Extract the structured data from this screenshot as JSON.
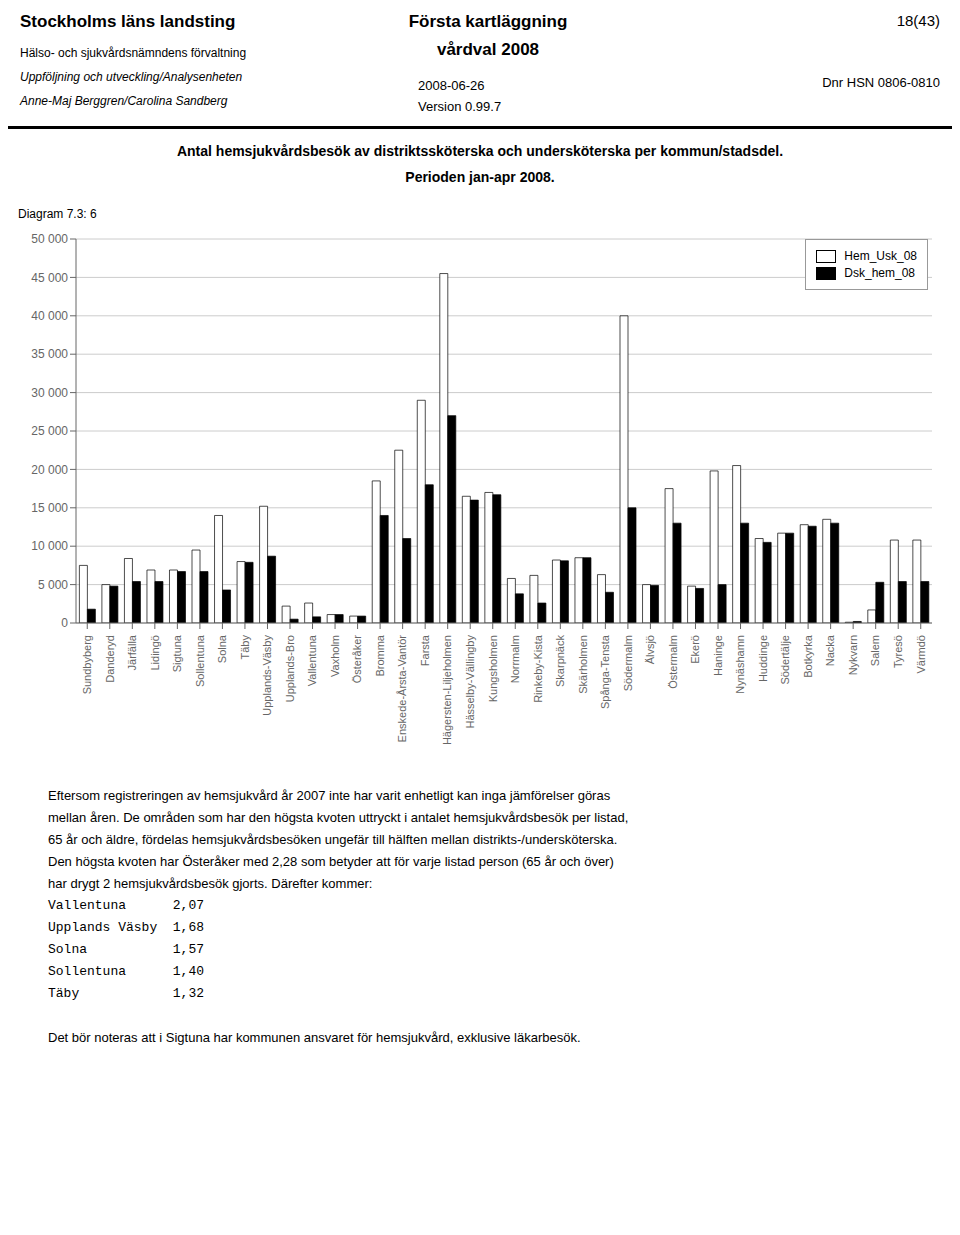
{
  "chart_data": {
    "type": "bar",
    "title": "Antal hemsjukvårdsbesök av distriktssköterska och undersköterska per kommun/stadsdel.",
    "subtitle": "Perioden jan-apr 2008.",
    "annotations": [
      "Stockholms läns landsting",
      "Hälso- och sjukvårdsnämndens förvaltning",
      "Uppföljning och utveckling/Analysenheten",
      "Anne-Maj Berggren/Carolina Sandberg",
      "Första kartläggning",
      "vårdval 2008",
      "2008-06-26",
      "Version 0.99.7",
      "18(43)",
      "Dnr HSN 0806-0810",
      "Diagram 7.3: 6",
      "Eftersom registreringen av hemsjukvård år 2007 inte har varit enhetligt kan inga jämförelser göras",
      "mellan åren. De områden som har den högsta kvoten uttryckt i antalet hemsjukvårdsbesök per listad,",
      "65 år och äldre, fördelas hemsjukvårdsbesöken ungefär till hälften mellan distrikts-/undersköterska.",
      "Den högsta kvoten har Österåker med 2,28 som betyder att för varje listad person (65 år och över)",
      "har drygt 2 hemsjukvårdsbesök gjorts. Därefter kommer:",
      "Vallentuna      2,07",
      "Upplands Väsby  1,68",
      "Solna           1,57",
      "Sollentuna      1,40",
      "Täby            1,32",
      "Det bör noteras att i Sigtuna har kommunen ansvaret för hemsjukvård, exklusive läkarbesök."
    ],
    "categories": [
      "Sundbyberg",
      "Danderyd",
      "Järfälla",
      "Lidingö",
      "Sigtuna",
      "Sollentuna",
      "Solna",
      "Täby",
      "Upplands-Väsby",
      "Upplands-Bro",
      "Vallentuna",
      "Vaxholm",
      "Österåker",
      "Bromma",
      "Enskede-Årsta-Vantör",
      "Farsta",
      "Hägersten-Liljeholmen",
      "Hässelby-Vällingby",
      "Kungsholmen",
      "Norrmalm",
      "Rinkeby-Kista",
      "Skarpnäck",
      "Skärholmen",
      "Spånga-Tensta",
      "Södermalm",
      "Älvsjö",
      "Östermalm",
      "Ekerö",
      "Haninge",
      "Nynäshamn",
      "Huddinge",
      "Södertälje",
      "Botkyrka",
      "Nacka",
      "Nykvarn",
      "Salem",
      "Tyresö",
      "Värmdö"
    ],
    "series": [
      {
        "name": "Hem_Usk_08",
        "color": "#ffffff",
        "values": [
          7500,
          5000,
          8400,
          6900,
          6900,
          9500,
          14000,
          8000,
          15200,
          2200,
          2600,
          1100,
          900,
          18500,
          22500,
          29000,
          45500,
          16500,
          17000,
          5800,
          6200,
          8200,
          8500,
          6300,
          40000,
          5000,
          17500,
          4800,
          19800,
          20500,
          11000,
          11700,
          12800,
          13500,
          100,
          1700,
          10800,
          10800
        ]
      },
      {
        "name": "Dsk_hem_08",
        "color": "#000000",
        "values": [
          1800,
          4800,
          5400,
          5400,
          6700,
          6700,
          4300,
          7900,
          8700,
          500,
          800,
          1100,
          900,
          14000,
          11000,
          18000,
          27000,
          16000,
          16700,
          3800,
          2600,
          8100,
          8500,
          4000,
          15000,
          4900,
          13000,
          4500,
          5000,
          13000,
          10500,
          11700,
          12600,
          13000,
          200,
          5300,
          5400,
          5400
        ]
      }
    ],
    "ylim": [
      0,
      50000
    ],
    "yticks": [
      0,
      {
        "value": 5000,
        "label": "5 000"
      },
      {
        "value": 10000,
        "label": "10 000"
      },
      {
        "value": 15000,
        "label": "15 000"
      },
      {
        "value": 20000,
        "label": "20 000"
      },
      {
        "value": 25000,
        "label": "25 000"
      },
      {
        "value": 30000,
        "label": "30 000"
      },
      {
        "value": 35000,
        "label": "35 000"
      },
      {
        "value": 40000,
        "label": "40 000"
      },
      {
        "value": 45000,
        "label": "45 000"
      },
      {
        "value": 50000,
        "label": "50 000"
      }
    ],
    "grid": true,
    "legend": "upper right"
  }
}
